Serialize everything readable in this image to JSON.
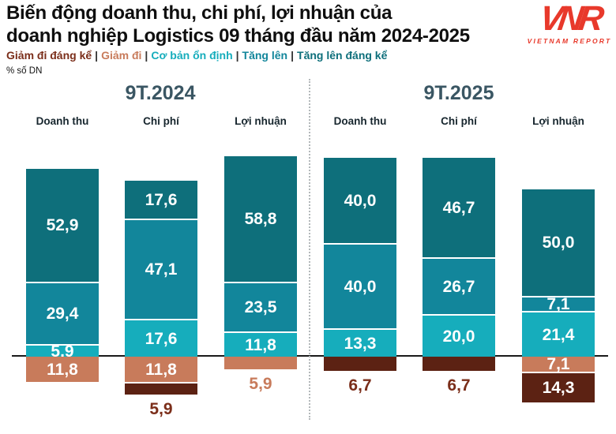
{
  "header": {
    "title_line1": "Biến động doanh thu, chi phí, lợi nhuận của",
    "title_line2": "doanh nghiệp Logistics 09 tháng đầu năm 2024-2025",
    "unit_label": "% số DN"
  },
  "logo": {
    "acronym": "VNR",
    "name": "VIETNAM REPORT",
    "color": "#E8392B"
  },
  "chart_data": {
    "type": "bar",
    "subtype": "diverging_stacked",
    "title": "Biến động doanh thu, chi phí, lợi nhuận của doanh nghiệp Logistics 09 tháng đầu năm 2024-2025",
    "unit": "% số DN",
    "axis_color": "#1a1a1a",
    "categories": [
      "Doanh thu",
      "Chi phí",
      "Lợi nhuận"
    ],
    "legend_separator": "|",
    "legend": [
      {
        "key": "giam_di_dang_ke",
        "label": "Giảm đi đáng kể",
        "color": "#7B2E1A"
      },
      {
        "key": "giam_di",
        "label": "Giảm đi",
        "color": "#C87B5B"
      },
      {
        "key": "co_ban_on_dinh",
        "label": "Cơ bản ổn định",
        "color": "#16ADBC"
      },
      {
        "key": "tang_len",
        "label": "Tăng lên",
        "color": "#12869B"
      },
      {
        "key": "tang_len_dang_ke",
        "label": "Tăng lên đáng kể",
        "color": "#0E6F7B"
      }
    ],
    "palette": {
      "giam_di_dang_ke": "#5C2213",
      "giam_di": "#C87B5B",
      "co_ban_on_dinh": "#16ADBC",
      "tang_len": "#12869B",
      "tang_len_dang_ke": "#0E6F7B"
    },
    "groups": [
      {
        "label": "9T.2024",
        "bars": [
          {
            "category": "Doanh thu",
            "above": [
              {
                "key": "tang_len_dang_ke",
                "value": 52.9,
                "label": "52,9"
              },
              {
                "key": "tang_len",
                "value": 29.4,
                "label": "29,4"
              },
              {
                "key": "co_ban_on_dinh",
                "value": 5.9,
                "label": "5,9"
              }
            ],
            "below": [
              {
                "key": "giam_di",
                "value": 11.8,
                "label": "11,8",
                "label_pos": "inside"
              }
            ]
          },
          {
            "category": "Chi phí",
            "above": [
              {
                "key": "tang_len_dang_ke",
                "value": 17.6,
                "label": "17,6"
              },
              {
                "key": "tang_len",
                "value": 47.1,
                "label": "47,1"
              },
              {
                "key": "co_ban_on_dinh",
                "value": 17.6,
                "label": "17,6"
              }
            ],
            "below": [
              {
                "key": "giam_di",
                "value": 11.8,
                "label": "11,8",
                "label_pos": "inside"
              },
              {
                "key": "giam_di_dang_ke",
                "value": 5.9,
                "label": "5,9",
                "label_pos": "below",
                "label_color": "#7B2E1A"
              }
            ]
          },
          {
            "category": "Lợi nhuận",
            "above": [
              {
                "key": "tang_len_dang_ke",
                "value": 58.8,
                "label": "58,8"
              },
              {
                "key": "tang_len",
                "value": 23.5,
                "label": "23,5"
              },
              {
                "key": "co_ban_on_dinh",
                "value": 11.8,
                "label": "11,8"
              }
            ],
            "below": [
              {
                "key": "giam_di",
                "value": 5.9,
                "label": "5,9",
                "label_pos": "below",
                "label_color": "#C87B5B"
              }
            ]
          }
        ]
      },
      {
        "label": "9T.2025",
        "bars": [
          {
            "category": "Doanh thu",
            "above": [
              {
                "key": "tang_len_dang_ke",
                "value": 40.0,
                "label": "40,0"
              },
              {
                "key": "tang_len",
                "value": 40.0,
                "label": "40,0"
              },
              {
                "key": "co_ban_on_dinh",
                "value": 13.3,
                "label": "13,3"
              }
            ],
            "below": [
              {
                "key": "giam_di_dang_ke",
                "value": 6.7,
                "label": "6,7",
                "label_pos": "below",
                "label_color": "#7B2E1A"
              }
            ]
          },
          {
            "category": "Chi phí",
            "above": [
              {
                "key": "tang_len_dang_ke",
                "value": 46.7,
                "label": "46,7"
              },
              {
                "key": "tang_len",
                "value": 26.7,
                "label": "26,7"
              },
              {
                "key": "co_ban_on_dinh",
                "value": 20.0,
                "label": "20,0"
              }
            ],
            "below": [
              {
                "key": "giam_di_dang_ke",
                "value": 6.7,
                "label": "6,7",
                "label_pos": "below",
                "label_color": "#7B2E1A"
              }
            ]
          },
          {
            "category": "Lợi nhuận",
            "above": [
              {
                "key": "tang_len_dang_ke",
                "value": 50.0,
                "label": "50,0"
              },
              {
                "key": "tang_len",
                "value": 7.1,
                "label": "7,1"
              },
              {
                "key": "co_ban_on_dinh",
                "value": 21.4,
                "label": "21,4"
              }
            ],
            "below": [
              {
                "key": "giam_di",
                "value": 7.1,
                "label": "7,1",
                "label_pos": "inside"
              },
              {
                "key": "giam_di_dang_ke",
                "value": 14.3,
                "label": "14,3",
                "label_pos": "inside"
              }
            ]
          }
        ]
      }
    ]
  }
}
